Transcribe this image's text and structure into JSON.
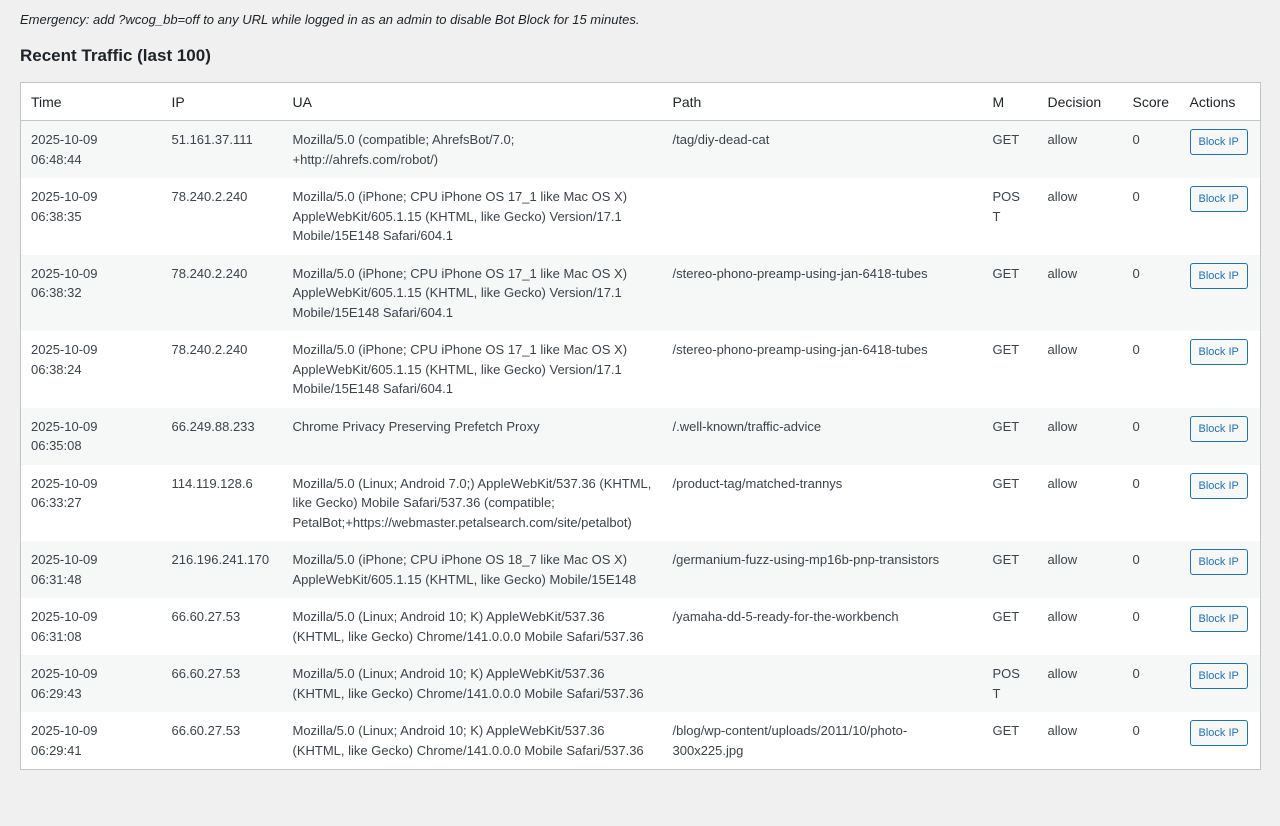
{
  "notice": "Emergency: add ?wcog_bb=off to any URL while logged in as an admin to disable Bot Block for 15 minutes.",
  "heading": "Recent Traffic (last 100)",
  "columns": [
    "Time",
    "IP",
    "UA",
    "Path",
    "M",
    "Decision",
    "Score",
    "Actions"
  ],
  "block_label": "Block IP",
  "rows": [
    {
      "time": "2025-10-09 06:48:44",
      "ip": "51.161.37.111",
      "ua": "Mozilla/5.0 (compatible; AhrefsBot/7.0; +http://ahrefs.com/robot/)",
      "path": "/tag/diy-dead-cat",
      "m": "GET",
      "decision": "allow",
      "score": "0"
    },
    {
      "time": "2025-10-09 06:38:35",
      "ip": "78.240.2.240",
      "ua": "Mozilla/5.0 (iPhone; CPU iPhone OS 17_1 like Mac OS X) AppleWebKit/605.1.15 (KHTML, like Gecko) Version/17.1 Mobile/15E148 Safari/604.1",
      "path": "",
      "m": "POST",
      "decision": "allow",
      "score": "0"
    },
    {
      "time": "2025-10-09 06:38:32",
      "ip": "78.240.2.240",
      "ua": "Mozilla/5.0 (iPhone; CPU iPhone OS 17_1 like Mac OS X) AppleWebKit/605.1.15 (KHTML, like Gecko) Version/17.1 Mobile/15E148 Safari/604.1",
      "path": "/stereo-phono-preamp-using-jan-6418-tubes",
      "m": "GET",
      "decision": "allow",
      "score": "0"
    },
    {
      "time": "2025-10-09 06:38:24",
      "ip": "78.240.2.240",
      "ua": "Mozilla/5.0 (iPhone; CPU iPhone OS 17_1 like Mac OS X) AppleWebKit/605.1.15 (KHTML, like Gecko) Version/17.1 Mobile/15E148 Safari/604.1",
      "path": "/stereo-phono-preamp-using-jan-6418-tubes",
      "m": "GET",
      "decision": "allow",
      "score": "0"
    },
    {
      "time": "2025-10-09 06:35:08",
      "ip": "66.249.88.233",
      "ua": "Chrome Privacy Preserving Prefetch Proxy",
      "path": "/.well-known/traffic-advice",
      "m": "GET",
      "decision": "allow",
      "score": "0"
    },
    {
      "time": "2025-10-09 06:33:27",
      "ip": "114.119.128.6",
      "ua": "Mozilla/5.0 (Linux; Android 7.0;) AppleWebKit/537.36 (KHTML, like Gecko) Mobile Safari/537.36 (compatible; PetalBot;+https://webmaster.petalsearch.com/site/petalbot)",
      "path": "/product-tag/matched-trannys",
      "m": "GET",
      "decision": "allow",
      "score": "0"
    },
    {
      "time": "2025-10-09 06:31:48",
      "ip": "216.196.241.170",
      "ua": "Mozilla/5.0 (iPhone; CPU iPhone OS 18_7 like Mac OS X) AppleWebKit/605.1.15 (KHTML, like Gecko) Mobile/15E148",
      "path": "/germanium-fuzz-using-mp16b-pnp-transistors",
      "m": "GET",
      "decision": "allow",
      "score": "0"
    },
    {
      "time": "2025-10-09 06:31:08",
      "ip": "66.60.27.53",
      "ua": "Mozilla/5.0 (Linux; Android 10; K) AppleWebKit/537.36 (KHTML, like Gecko) Chrome/141.0.0.0 Mobile Safari/537.36",
      "path": "/yamaha-dd-5-ready-for-the-workbench",
      "m": "GET",
      "decision": "allow",
      "score": "0"
    },
    {
      "time": "2025-10-09 06:29:43",
      "ip": "66.60.27.53",
      "ua": "Mozilla/5.0 (Linux; Android 10; K) AppleWebKit/537.36 (KHTML, like Gecko) Chrome/141.0.0.0 Mobile Safari/537.36",
      "path": "",
      "m": "POST",
      "decision": "allow",
      "score": "0"
    },
    {
      "time": "2025-10-09 06:29:41",
      "ip": "66.60.27.53",
      "ua": "Mozilla/5.0 (Linux; Android 10; K) AppleWebKit/537.36 (KHTML, like Gecko) Chrome/141.0.0.0 Mobile Safari/537.36",
      "path": "/blog/wp-content/uploads/2011/10/photo-300x225.jpg",
      "m": "GET",
      "decision": "allow",
      "score": "0"
    }
  ]
}
